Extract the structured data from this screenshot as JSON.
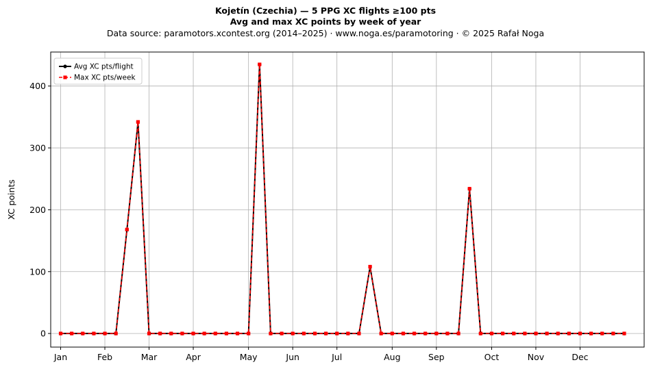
{
  "chart_data": {
    "type": "line",
    "title": "Kojetín (Czechia)  —  5 PPG XC flights ≥100 pts",
    "subtitle": "Avg and max XC points by week of year",
    "source_line": "Data source: paramotors.xcontest.org (2014–2025)  ·  www.noga.es/paramotoring  ·  © 2025 Rafał Noga",
    "xlabel": "",
    "ylabel": "XC points",
    "x_weeks": [
      1,
      2,
      3,
      4,
      5,
      6,
      7,
      8,
      9,
      10,
      11,
      12,
      13,
      14,
      15,
      16,
      17,
      18,
      19,
      20,
      21,
      22,
      23,
      24,
      25,
      26,
      27,
      28,
      29,
      30,
      31,
      32,
      33,
      34,
      35,
      36,
      37,
      38,
      39,
      40,
      41,
      42,
      43,
      44,
      45,
      46,
      47,
      48,
      49,
      50,
      51,
      52
    ],
    "x_ticks": [
      {
        "label": "Jan",
        "week": 1
      },
      {
        "label": "Feb",
        "week": 5
      },
      {
        "label": "Mar",
        "week": 9
      },
      {
        "label": "Apr",
        "week": 13
      },
      {
        "label": "May",
        "week": 18
      },
      {
        "label": "Jun",
        "week": 22
      },
      {
        "label": "Jul",
        "week": 26
      },
      {
        "label": "Aug",
        "week": 31
      },
      {
        "label": "Sep",
        "week": 35
      },
      {
        "label": "Oct",
        "week": 40
      },
      {
        "label": "Nov",
        "week": 44
      },
      {
        "label": "Dec",
        "week": 48
      }
    ],
    "xlim": [
      0.1,
      53.8
    ],
    "ylim": [
      -22,
      455
    ],
    "y_ticks": [
      0,
      100,
      200,
      300,
      400
    ],
    "grid": true,
    "legend_position": "top-left",
    "series": [
      {
        "name": "Avg XC pts/flight",
        "color": "#000000",
        "style": "solid",
        "marker": "circle",
        "values": [
          0,
          0,
          0,
          0,
          0,
          0,
          168,
          342,
          0,
          0,
          0,
          0,
          0,
          0,
          0,
          0,
          0,
          0,
          435,
          0,
          0,
          0,
          0,
          0,
          0,
          0,
          0,
          0,
          108,
          0,
          0,
          0,
          0,
          0,
          0,
          0,
          0,
          234,
          0,
          0,
          0,
          0,
          0,
          0,
          0,
          0,
          0,
          0,
          0,
          0,
          0,
          0
        ]
      },
      {
        "name": "Max XC pts/week",
        "color": "#ff0000",
        "style": "dashed",
        "marker": "square",
        "values": [
          0,
          0,
          0,
          0,
          0,
          0,
          168,
          342,
          0,
          0,
          0,
          0,
          0,
          0,
          0,
          0,
          0,
          0,
          435,
          0,
          0,
          0,
          0,
          0,
          0,
          0,
          0,
          0,
          108,
          0,
          0,
          0,
          0,
          0,
          0,
          0,
          0,
          234,
          0,
          0,
          0,
          0,
          0,
          0,
          0,
          0,
          0,
          0,
          0,
          0,
          0,
          0
        ]
      }
    ]
  }
}
